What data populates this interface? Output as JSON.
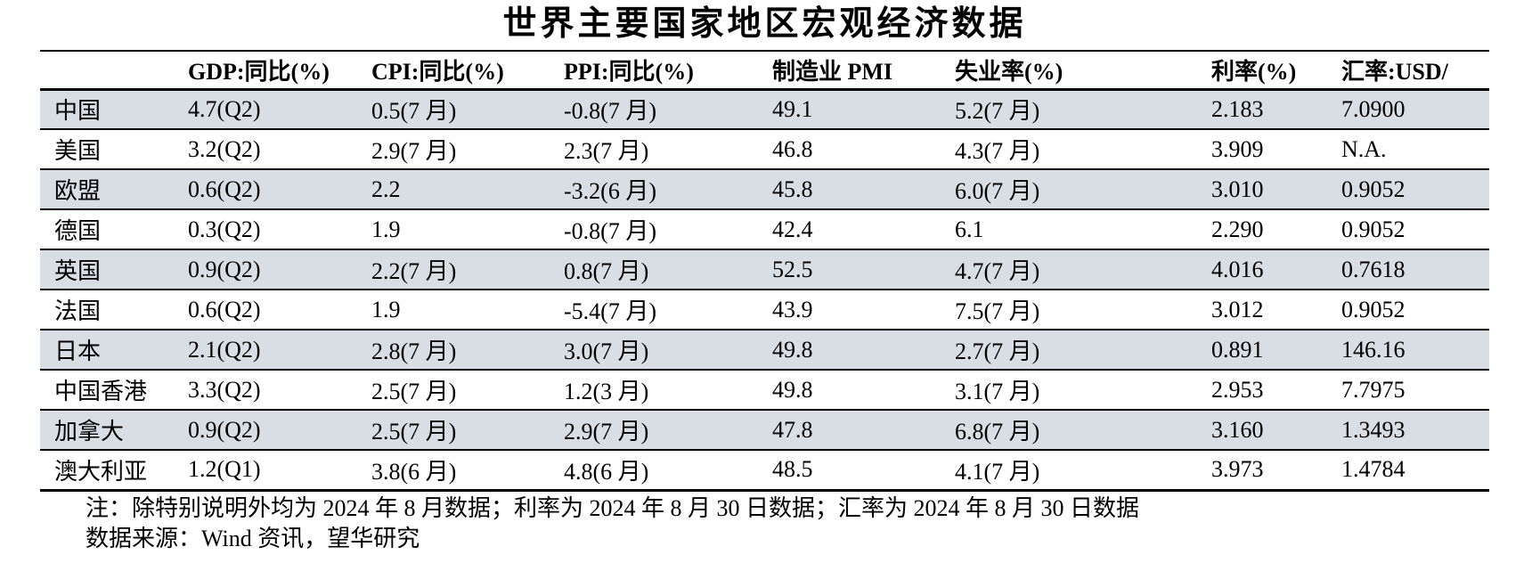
{
  "title": "世界主要国家地区宏观经济数据",
  "table": {
    "columns": [
      {
        "key": "region",
        "label": ""
      },
      {
        "key": "gdp",
        "label": "GDP:同比(%)"
      },
      {
        "key": "cpi",
        "label": "CPI:同比(%)"
      },
      {
        "key": "ppi",
        "label": "PPI:同比(%)"
      },
      {
        "key": "pmi",
        "label": "制造业 PMI"
      },
      {
        "key": "unemployment",
        "label": "失业率(%)"
      },
      {
        "key": "interest_rate",
        "label": "利率(%)"
      },
      {
        "key": "fx_rate",
        "label": "汇率:USD/"
      }
    ],
    "rows": [
      {
        "region": "中国",
        "gdp": "4.7(Q2)",
        "cpi": "0.5(7 月)",
        "ppi": "-0.8(7 月)",
        "pmi": "49.1",
        "unemployment": "5.2(7 月)",
        "interest_rate": "2.183",
        "fx_rate": "7.0900"
      },
      {
        "region": "美国",
        "gdp": "3.2(Q2)",
        "cpi": "2.9(7 月)",
        "ppi": "2.3(7 月)",
        "pmi": "46.8",
        "unemployment": "4.3(7 月)",
        "interest_rate": "3.909",
        "fx_rate": "N.A."
      },
      {
        "region": "欧盟",
        "gdp": "0.6(Q2)",
        "cpi": "2.2",
        "ppi": "-3.2(6 月)",
        "pmi": "45.8",
        "unemployment": "6.0(7 月)",
        "interest_rate": "3.010",
        "fx_rate": "0.9052"
      },
      {
        "region": "德国",
        "gdp": "0.3(Q2)",
        "cpi": "1.9",
        "ppi": "-0.8(7 月)",
        "pmi": "42.4",
        "unemployment": "6.1",
        "interest_rate": "2.290",
        "fx_rate": "0.9052"
      },
      {
        "region": "英国",
        "gdp": "0.9(Q2)",
        "cpi": "2.2(7 月)",
        "ppi": "0.8(7 月)",
        "pmi": "52.5",
        "unemployment": "4.7(7 月)",
        "interest_rate": "4.016",
        "fx_rate": "0.7618"
      },
      {
        "region": "法国",
        "gdp": "0.6(Q2)",
        "cpi": "1.9",
        "ppi": "-5.4(7 月)",
        "pmi": "43.9",
        "unemployment": "7.5(7 月)",
        "interest_rate": "3.012",
        "fx_rate": "0.9052"
      },
      {
        "region": "日本",
        "gdp": "2.1(Q2)",
        "cpi": "2.8(7 月)",
        "ppi": "3.0(7 月)",
        "pmi": "49.8",
        "unemployment": "2.7(7 月)",
        "interest_rate": "0.891",
        "fx_rate": "146.16"
      },
      {
        "region": "中国香港",
        "gdp": "3.3(Q2)",
        "cpi": "2.5(7 月)",
        "ppi": "1.2(3 月)",
        "pmi": "49.8",
        "unemployment": "3.1(7 月)",
        "interest_rate": "2.953",
        "fx_rate": "7.7975"
      },
      {
        "region": "加拿大",
        "gdp": "0.9(Q2)",
        "cpi": "2.5(7 月)",
        "ppi": "2.9(7 月)",
        "pmi": "47.8",
        "unemployment": "6.8(7 月)",
        "interest_rate": "3.160",
        "fx_rate": "1.3493"
      },
      {
        "region": "澳大利亚",
        "gdp": "1.2(Q1)",
        "cpi": "3.8(6 月)",
        "ppi": "4.8(6 月)",
        "pmi": "48.5",
        "unemployment": "4.1(7 月)",
        "interest_rate": "3.973",
        "fx_rate": "1.4784"
      }
    ]
  },
  "notes": {
    "note": "注：除特别说明外均为 2024 年 8 月数据；利率为 2024 年 8 月 30 日数据；汇率为 2024 年 8 月 30 日数据",
    "source": "数据来源：Wind 资讯，望华研究"
  },
  "colors": {
    "stripe": "#d9dde4",
    "rule": "#000000",
    "text": "#000000"
  }
}
